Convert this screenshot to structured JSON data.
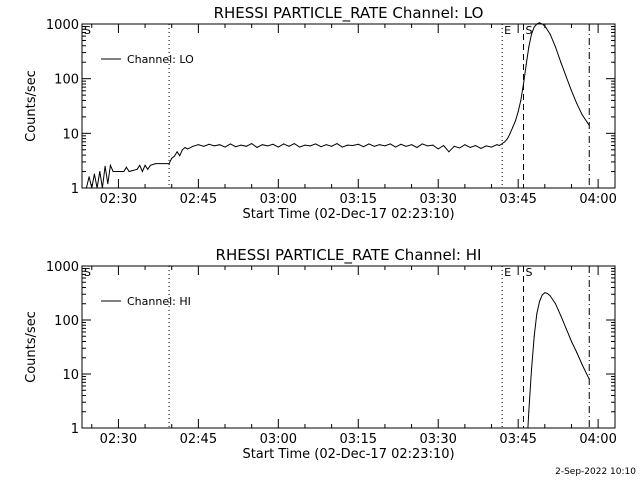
{
  "footer": {
    "timestamp": "2-Sep-2022 10:10"
  },
  "chart_data": [
    {
      "type": "line",
      "title": "RHESSI PARTICLE_RATE Channel: LO",
      "xlabel": "Start Time (02-Dec-17 02:23:10)",
      "ylabel": "Counts/sec",
      "x_unit": "HH:MM (02-Dec-17)",
      "xlim": [
        "02:23:10",
        "04:03:10"
      ],
      "ylim": [
        1,
        1000
      ],
      "y_scale": "log",
      "x_ticks": [
        "02:30",
        "02:45",
        "03:00",
        "03:15",
        "03:30",
        "03:45",
        "04:00"
      ],
      "y_ticks": [
        "1",
        "10",
        "100",
        "1000"
      ],
      "legend": {
        "entries": [
          "Channel: LO"
        ],
        "placement": "top-left"
      },
      "markers": [
        {
          "label": "S",
          "time": "02:23:10",
          "style": "solid"
        },
        {
          "label": "",
          "time": "02:39:30",
          "style": "dotted"
        },
        {
          "label": "E",
          "time": "03:42:00",
          "style": "dotted"
        },
        {
          "label": "S",
          "time": "03:46:00",
          "style": "dashed"
        },
        {
          "label": "",
          "time": "03:58:20",
          "style": "dashdot"
        }
      ],
      "series": [
        {
          "name": "Channel: LO",
          "points": [
            [
              "02:24:00",
              1
            ],
            [
              "02:24:30",
              1.6
            ],
            [
              "02:25:00",
              1
            ],
            [
              "02:25:30",
              1.8
            ],
            [
              "02:26:00",
              1
            ],
            [
              "02:26:30",
              2.0
            ],
            [
              "02:27:00",
              1
            ],
            [
              "02:27:30",
              2.5
            ],
            [
              "02:28:00",
              1.2
            ],
            [
              "02:28:30",
              2.6
            ],
            [
              "02:29:00",
              2.0
            ],
            [
              "02:31:00",
              2.0
            ],
            [
              "02:31:30",
              2.4
            ],
            [
              "02:32:00",
              2.0
            ],
            [
              "02:33:30",
              2.2
            ],
            [
              "02:34:00",
              2.6
            ],
            [
              "02:34:30",
              2.0
            ],
            [
              "02:35:00",
              2.6
            ],
            [
              "02:35:30",
              2.2
            ],
            [
              "02:36:00",
              2.6
            ],
            [
              "02:37:00",
              2.8
            ],
            [
              "02:39:30",
              2.8
            ],
            [
              "02:40:00",
              3.5
            ],
            [
              "02:40:30",
              3.8
            ],
            [
              "02:41:00",
              4.6
            ],
            [
              "02:41:30",
              3.9
            ],
            [
              "02:42:00",
              5.0
            ],
            [
              "02:42:30",
              5.5
            ],
            [
              "02:43:00",
              5.2
            ],
            [
              "02:44:00",
              5.8
            ],
            [
              "02:45:00",
              6.2
            ],
            [
              "02:46:00",
              5.8
            ],
            [
              "02:47:00",
              6.3
            ],
            [
              "02:48:00",
              5.9
            ],
            [
              "02:49:00",
              6.2
            ],
            [
              "02:50:00",
              5.6
            ],
            [
              "02:51:00",
              6.4
            ],
            [
              "02:52:00",
              5.7
            ],
            [
              "02:53:00",
              6.1
            ],
            [
              "02:54:00",
              5.8
            ],
            [
              "02:55:00",
              6.5
            ],
            [
              "02:56:00",
              5.5
            ],
            [
              "02:57:00",
              6.2
            ],
            [
              "02:58:00",
              5.9
            ],
            [
              "02:59:00",
              6.3
            ],
            [
              "03:00:00",
              5.6
            ],
            [
              "03:01:00",
              6.4
            ],
            [
              "03:02:00",
              5.8
            ],
            [
              "03:03:00",
              6.5
            ],
            [
              "03:04:00",
              5.6
            ],
            [
              "03:05:00",
              6.1
            ],
            [
              "03:06:00",
              5.9
            ],
            [
              "03:07:00",
              6.4
            ],
            [
              "03:08:00",
              5.7
            ],
            [
              "03:09:00",
              6.2
            ],
            [
              "03:10:00",
              5.8
            ],
            [
              "03:11:00",
              6.5
            ],
            [
              "03:12:00",
              5.6
            ],
            [
              "03:13:00",
              6.1
            ],
            [
              "03:14:00",
              6.0
            ],
            [
              "03:15:00",
              6.3
            ],
            [
              "03:16:00",
              5.7
            ],
            [
              "03:17:00",
              6.4
            ],
            [
              "03:18:00",
              5.8
            ],
            [
              "03:19:00",
              6.2
            ],
            [
              "03:20:00",
              5.9
            ],
            [
              "03:21:00",
              6.4
            ],
            [
              "03:22:00",
              5.6
            ],
            [
              "03:23:00",
              6.3
            ],
            [
              "03:24:00",
              5.8
            ],
            [
              "03:25:00",
              6.2
            ],
            [
              "03:26:00",
              5.5
            ],
            [
              "03:27:00",
              6.4
            ],
            [
              "03:28:00",
              5.9
            ],
            [
              "03:29:00",
              6.1
            ],
            [
              "03:30:00",
              5.2
            ],
            [
              "03:31:00",
              6.0
            ],
            [
              "03:32:00",
              4.6
            ],
            [
              "03:33:00",
              5.8
            ],
            [
              "03:34:00",
              5.4
            ],
            [
              "03:35:00",
              6.2
            ],
            [
              "03:36:00",
              5.5
            ],
            [
              "03:37:00",
              6.0
            ],
            [
              "03:38:00",
              5.3
            ],
            [
              "03:39:00",
              5.9
            ],
            [
              "03:40:00",
              5.6
            ],
            [
              "03:41:00",
              6.2
            ],
            [
              "03:41:30",
              6.0
            ],
            [
              "03:42:30",
              7.0
            ],
            [
              "03:43:00",
              8.0
            ],
            [
              "03:43:30",
              10
            ],
            [
              "03:44:00",
              13
            ],
            [
              "03:44:30",
              17
            ],
            [
              "03:45:00",
              25
            ],
            [
              "03:45:30",
              40
            ],
            [
              "03:46:00",
              80
            ],
            [
              "03:46:30",
              180
            ],
            [
              "03:47:00",
              380
            ],
            [
              "03:47:30",
              650
            ],
            [
              "03:48:00",
              880
            ],
            [
              "03:48:30",
              1000
            ],
            [
              "03:49:00",
              1050
            ],
            [
              "03:49:30",
              1000
            ],
            [
              "03:50:00",
              920
            ],
            [
              "03:51:00",
              650
            ],
            [
              "03:52:00",
              380
            ],
            [
              "03:53:00",
              200
            ],
            [
              "03:54:00",
              110
            ],
            [
              "03:55:00",
              60
            ],
            [
              "03:56:00",
              35
            ],
            [
              "03:57:00",
              22
            ],
            [
              "03:58:20",
              14
            ]
          ]
        }
      ]
    },
    {
      "type": "line",
      "title": "RHESSI PARTICLE_RATE Channel: HI",
      "xlabel": "Start Time (02-Dec-17 02:23:10)",
      "ylabel": "Counts/sec",
      "x_unit": "HH:MM (02-Dec-17)",
      "xlim": [
        "02:23:10",
        "04:03:10"
      ],
      "ylim": [
        1,
        1000
      ],
      "y_scale": "log",
      "x_ticks": [
        "02:30",
        "02:45",
        "03:00",
        "03:15",
        "03:30",
        "03:45",
        "04:00"
      ],
      "y_ticks": [
        "1",
        "10",
        "100",
        "1000"
      ],
      "legend": {
        "entries": [
          "Channel: HI"
        ],
        "placement": "top-left"
      },
      "markers": [
        {
          "label": "S",
          "time": "02:23:10",
          "style": "solid"
        },
        {
          "label": "",
          "time": "02:39:30",
          "style": "dotted"
        },
        {
          "label": "E",
          "time": "03:42:00",
          "style": "dotted"
        },
        {
          "label": "S",
          "time": "03:46:00",
          "style": "dashed"
        },
        {
          "label": "",
          "time": "03:58:20",
          "style": "dashdot"
        }
      ],
      "series": [
        {
          "name": "Channel: HI",
          "points": [
            [
              "03:46:50",
              1
            ],
            [
              "03:47:00",
              2
            ],
            [
              "03:47:30",
              12
            ],
            [
              "03:48:00",
              50
            ],
            [
              "03:48:30",
              130
            ],
            [
              "03:49:00",
              220
            ],
            [
              "03:49:30",
              290
            ],
            [
              "03:50:00",
              320
            ],
            [
              "03:50:30",
              310
            ],
            [
              "03:51:00",
              280
            ],
            [
              "03:52:00",
              200
            ],
            [
              "03:53:00",
              120
            ],
            [
              "03:54:00",
              70
            ],
            [
              "03:55:00",
              40
            ],
            [
              "03:56:00",
              25
            ],
            [
              "03:57:00",
              15
            ],
            [
              "03:58:20",
              8
            ]
          ]
        }
      ]
    }
  ]
}
